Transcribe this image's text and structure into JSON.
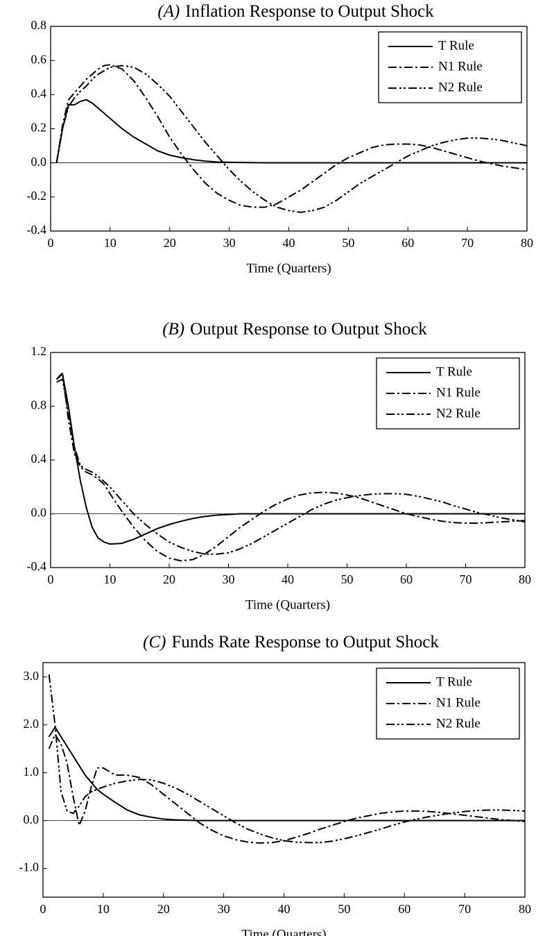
{
  "chart_data": [
    {
      "type": "line",
      "panel": "(A)",
      "title": "Inflation Response to Output Shock",
      "x_label": "Time (Quarters)",
      "x": [
        1,
        2,
        3,
        4,
        5,
        6,
        7,
        8,
        9,
        10,
        12,
        14,
        16,
        18,
        20,
        22,
        24,
        26,
        28,
        30,
        32,
        34,
        36,
        38,
        40,
        42,
        44,
        46,
        48,
        50,
        52,
        54,
        56,
        58,
        60,
        62,
        64,
        66,
        68,
        70,
        72,
        74,
        76,
        78,
        80
      ],
      "xlim": [
        0,
        80
      ],
      "xticks": [
        0,
        10,
        20,
        30,
        40,
        50,
        60,
        70,
        80
      ],
      "ylim": [
        -0.4,
        0.8
      ],
      "yticks": [
        {
          "value": -0.4,
          "label": "-0.4"
        },
        {
          "value": -0.2,
          "label": "-0.2"
        },
        {
          "value": 0,
          "label": "0.0"
        },
        {
          "value": 0.2,
          "label": "0.2"
        },
        {
          "value": 0.4,
          "label": "0.4"
        },
        {
          "value": 0.6,
          "label": "0.6"
        },
        {
          "value": 0.8,
          "label": "0.8"
        }
      ],
      "legend": "upper right",
      "series": [
        {
          "name": "T Rule",
          "color": "#000000",
          "style": "solid",
          "values": [
            0,
            0.2,
            0.34,
            0.34,
            0.36,
            0.37,
            0.35,
            0.32,
            0.29,
            0.26,
            0.2,
            0.15,
            0.11,
            0.07,
            0.045,
            0.03,
            0.018,
            0.01,
            0.005,
            0.003,
            0.002,
            0.001,
            0,
            0,
            0,
            0,
            0,
            0,
            0,
            0,
            0,
            0,
            0,
            0,
            0,
            0,
            0,
            0,
            0,
            0,
            0,
            0,
            0,
            0,
            0
          ]
        },
        {
          "name": "N1 Rule",
          "color": "#000000",
          "style": "dashdot",
          "values": [
            0,
            0.22,
            0.37,
            0.41,
            0.45,
            0.49,
            0.52,
            0.55,
            0.57,
            0.575,
            0.55,
            0.48,
            0.38,
            0.27,
            0.15,
            0.05,
            -0.04,
            -0.12,
            -0.18,
            -0.22,
            -0.25,
            -0.26,
            -0.26,
            -0.24,
            -0.2,
            -0.16,
            -0.11,
            -0.06,
            -0.01,
            0.03,
            0.06,
            0.09,
            0.105,
            0.11,
            0.11,
            0.105,
            0.09,
            0.07,
            0.05,
            0.03,
            0.01,
            -0.005,
            -0.02,
            -0.03,
            -0.04
          ]
        },
        {
          "name": "N2 Rule",
          "color": "#000000",
          "style": "dashdotdot",
          "values": [
            0,
            0.2,
            0.33,
            0.38,
            0.42,
            0.45,
            0.49,
            0.52,
            0.54,
            0.56,
            0.57,
            0.56,
            0.52,
            0.46,
            0.39,
            0.3,
            0.21,
            0.12,
            0.04,
            -0.04,
            -0.11,
            -0.17,
            -0.22,
            -0.26,
            -0.28,
            -0.29,
            -0.28,
            -0.26,
            -0.22,
            -0.17,
            -0.12,
            -0.08,
            -0.04,
            0,
            0.04,
            0.07,
            0.1,
            0.12,
            0.135,
            0.145,
            0.145,
            0.14,
            0.13,
            0.115,
            0.1
          ]
        }
      ]
    },
    {
      "type": "line",
      "panel": "(B)",
      "title": "Output Response to Output Shock",
      "x_label": "Time (Quarters)",
      "x": [
        1,
        2,
        3,
        4,
        5,
        6,
        7,
        8,
        9,
        10,
        12,
        14,
        16,
        18,
        20,
        22,
        24,
        26,
        28,
        30,
        32,
        34,
        36,
        38,
        40,
        42,
        44,
        46,
        48,
        50,
        52,
        54,
        56,
        58,
        60,
        62,
        64,
        66,
        68,
        70,
        72,
        74,
        76,
        78,
        80
      ],
      "xlim": [
        0,
        80
      ],
      "xticks": [
        0,
        10,
        20,
        30,
        40,
        50,
        60,
        70,
        80
      ],
      "ylim": [
        -0.4,
        1.2
      ],
      "yticks": [
        {
          "value": -0.4,
          "label": "-0.4"
        },
        {
          "value": 0,
          "label": "0.0"
        },
        {
          "value": 0.4,
          "label": "0.4"
        },
        {
          "value": 0.8,
          "label": "0.8"
        },
        {
          "value": 1.2,
          "label": "1.2"
        }
      ],
      "legend": "upper right",
      "series": [
        {
          "name": "T Rule",
          "color": "#000000",
          "style": "solid",
          "values": [
            1,
            1.04,
            0.8,
            0.5,
            0.25,
            0.05,
            -0.1,
            -0.18,
            -0.21,
            -0.225,
            -0.22,
            -0.19,
            -0.15,
            -0.11,
            -0.08,
            -0.055,
            -0.035,
            -0.02,
            -0.01,
            -0.005,
            0,
            0,
            0,
            0,
            0,
            0,
            0,
            0,
            0,
            0,
            0,
            0,
            0,
            0,
            0,
            0,
            0,
            0,
            0,
            0,
            0,
            0,
            0,
            0,
            0
          ]
        },
        {
          "name": "N1 Rule",
          "color": "#000000",
          "style": "dashdot",
          "values": [
            1,
            1.05,
            0.7,
            0.45,
            0.35,
            0.31,
            0.29,
            0.26,
            0.22,
            0.15,
            0.02,
            -0.1,
            -0.2,
            -0.28,
            -0.33,
            -0.35,
            -0.34,
            -0.3,
            -0.24,
            -0.17,
            -0.1,
            -0.04,
            0.02,
            0.07,
            0.11,
            0.14,
            0.155,
            0.16,
            0.155,
            0.14,
            0.12,
            0.09,
            0.06,
            0.03,
            0,
            -0.02,
            -0.04,
            -0.055,
            -0.065,
            -0.07,
            -0.07,
            -0.065,
            -0.06,
            -0.055,
            -0.05
          ]
        },
        {
          "name": "N2 Rule",
          "color": "#000000",
          "style": "dashdotdot",
          "values": [
            0.98,
            1,
            0.75,
            0.5,
            0.36,
            0.33,
            0.31,
            0.28,
            0.24,
            0.2,
            0.1,
            0,
            -0.08,
            -0.15,
            -0.21,
            -0.25,
            -0.28,
            -0.3,
            -0.3,
            -0.29,
            -0.26,
            -0.22,
            -0.17,
            -0.12,
            -0.07,
            -0.02,
            0.03,
            0.07,
            0.1,
            0.12,
            0.135,
            0.145,
            0.15,
            0.15,
            0.145,
            0.13,
            0.11,
            0.09,
            0.06,
            0.035,
            0.01,
            -0.01,
            -0.03,
            -0.045,
            -0.06
          ]
        }
      ]
    },
    {
      "type": "line",
      "panel": "(C)",
      "title": "Funds Rate Response to Output Shock",
      "x_label": "Time (Quarters)",
      "x": [
        1,
        2,
        3,
        4,
        5,
        6,
        7,
        8,
        9,
        10,
        12,
        14,
        16,
        18,
        20,
        22,
        24,
        26,
        28,
        30,
        32,
        34,
        36,
        38,
        40,
        42,
        44,
        46,
        48,
        50,
        52,
        54,
        56,
        58,
        60,
        62,
        64,
        66,
        68,
        70,
        72,
        74,
        76,
        78,
        80
      ],
      "xlim": [
        0,
        80
      ],
      "xticks": [
        0,
        10,
        20,
        30,
        40,
        50,
        60,
        70,
        80
      ],
      "ylim": [
        -1.6,
        3.3
      ],
      "yticks": [
        {
          "value": -1,
          "label": "-1.0"
        },
        {
          "value": 0,
          "label": "0.0"
        },
        {
          "value": 1,
          "label": "1.0"
        },
        {
          "value": 2,
          "label": "2.0"
        },
        {
          "value": 3,
          "label": "3.0"
        }
      ],
      "legend": "upper right",
      "series": [
        {
          "name": "T Rule",
          "color": "#000000",
          "style": "solid",
          "values": [
            1.75,
            1.95,
            1.75,
            1.55,
            1.35,
            1.15,
            0.95,
            0.8,
            0.65,
            0.55,
            0.38,
            0.22,
            0.12,
            0.07,
            0.03,
            0.015,
            0.005,
            0,
            0,
            0,
            0,
            0,
            0,
            0,
            0,
            0,
            0,
            0,
            0,
            0,
            0,
            0,
            0,
            0,
            0,
            0,
            0,
            0,
            0,
            0,
            0,
            0,
            0,
            0,
            0
          ]
        },
        {
          "name": "N1 Rule",
          "color": "#000000",
          "style": "dashdot",
          "values": [
            1.5,
            1.8,
            1.6,
            1.2,
            0.5,
            -0.1,
            0.2,
            0.7,
            1.1,
            1.1,
            0.95,
            0.95,
            0.9,
            0.75,
            0.55,
            0.35,
            0.15,
            -0.05,
            -0.2,
            -0.32,
            -0.4,
            -0.45,
            -0.47,
            -0.46,
            -0.42,
            -0.35,
            -0.27,
            -0.18,
            -0.1,
            -0.02,
            0.05,
            0.1,
            0.15,
            0.18,
            0.2,
            0.2,
            0.19,
            0.17,
            0.14,
            0.11,
            0.08,
            0.05,
            0.02,
            0,
            -0.02
          ]
        },
        {
          "name": "N2 Rule",
          "color": "#000000",
          "style": "dashdotdot",
          "values": [
            3.05,
            2,
            0.6,
            0.2,
            0.15,
            0.3,
            0.5,
            0.6,
            0.65,
            0.7,
            0.78,
            0.83,
            0.86,
            0.85,
            0.78,
            0.68,
            0.55,
            0.4,
            0.25,
            0.1,
            -0.05,
            -0.18,
            -0.28,
            -0.36,
            -0.42,
            -0.45,
            -0.46,
            -0.46,
            -0.43,
            -0.38,
            -0.32,
            -0.25,
            -0.18,
            -0.1,
            -0.03,
            0.03,
            0.08,
            0.12,
            0.16,
            0.19,
            0.21,
            0.22,
            0.22,
            0.21,
            0.2
          ]
        }
      ]
    }
  ]
}
